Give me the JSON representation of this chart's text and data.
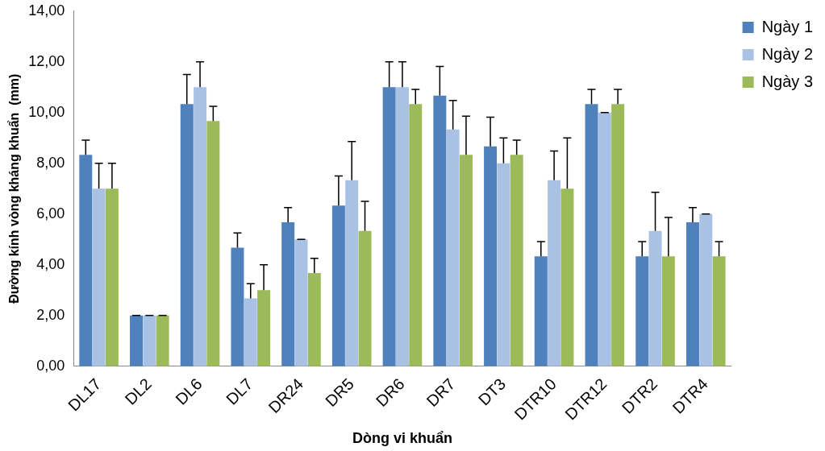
{
  "chart_data": {
    "type": "bar",
    "xlabel": "Dòng vi khuẩn",
    "ylabel": "Đường kính vòng kháng khuẩn  (mm)",
    "categories": [
      "DL17",
      "DL2",
      "DL6",
      "DL7",
      "DR24",
      "DR5",
      "DR6",
      "DR7",
      "DT3",
      "DTR10",
      "DTR12",
      "DTR2",
      "DTR4"
    ],
    "series": [
      {
        "name": "Ngày 1",
        "color": "#4f81bd",
        "values": [
          8.33,
          2,
          10.33,
          4.67,
          5.67,
          6.33,
          11,
          10.67,
          8.67,
          4.33,
          10.33,
          4.33,
          5.67
        ],
        "errors": [
          [
            8.33,
            8.91
          ],
          [
            2,
            2
          ],
          [
            10.33,
            11.5
          ],
          [
            4.67,
            5.25
          ],
          [
            5.67,
            6.25
          ],
          [
            6.33,
            7.5
          ],
          [
            11,
            12
          ],
          [
            10.67,
            11.82
          ],
          [
            8.67,
            9.82
          ],
          [
            4.33,
            4.91
          ],
          [
            10.33,
            10.91
          ],
          [
            4.33,
            4.91
          ],
          [
            5.67,
            6.25
          ]
        ]
      },
      {
        "name": "Ngày 2",
        "color": "#a9c1e3",
        "values": [
          7,
          2,
          11,
          2.67,
          5,
          7.33,
          11,
          9.33,
          8,
          7.33,
          10,
          5.33,
          6
        ],
        "errors": [
          [
            7,
            8
          ],
          [
            2,
            2
          ],
          [
            11,
            12
          ],
          [
            2.67,
            3.25
          ],
          [
            5,
            5
          ],
          [
            7.33,
            8.86
          ],
          [
            11,
            12
          ],
          [
            9.33,
            10.48
          ],
          [
            8,
            9
          ],
          [
            7.33,
            8.48
          ],
          [
            10,
            10
          ],
          [
            5.33,
            6.86
          ],
          [
            6,
            6
          ]
        ]
      },
      {
        "name": "Ngày 3",
        "color": "#9bbb59",
        "values": [
          7,
          2,
          9.67,
          3,
          3.67,
          5.33,
          10.33,
          8.33,
          8.33,
          7,
          10.33,
          4.33,
          4.33
        ],
        "errors": [
          [
            7,
            8
          ],
          [
            2,
            2
          ],
          [
            9.67,
            10.25
          ],
          [
            3,
            4
          ],
          [
            3.67,
            4.25
          ],
          [
            5.33,
            6.5
          ],
          [
            10.33,
            10.91
          ],
          [
            8.33,
            9.86
          ],
          [
            8.33,
            8.91
          ],
          [
            7,
            9
          ],
          [
            10.33,
            10.91
          ],
          [
            4.33,
            5.86
          ],
          [
            4.33,
            4.91
          ]
        ]
      }
    ],
    "ylim": [
      0,
      14
    ],
    "yticks": [
      {
        "value": 0,
        "label": "0,00"
      },
      {
        "value": 2,
        "label": "2,00"
      },
      {
        "value": 4,
        "label": "4,00"
      },
      {
        "value": 6,
        "label": "6,00"
      },
      {
        "value": 8,
        "label": "8,00"
      },
      {
        "value": 10,
        "label": "10,00"
      },
      {
        "value": 12,
        "label": "12,00"
      },
      {
        "value": 14,
        "label": "14,00"
      }
    ],
    "legend": "right"
  }
}
